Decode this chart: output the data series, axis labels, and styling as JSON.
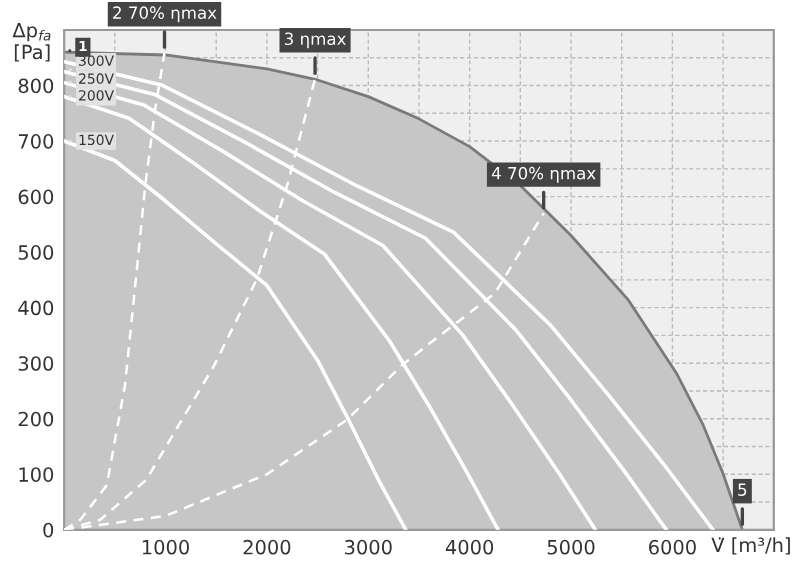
{
  "chart_data": {
    "type": "line",
    "xlabel": "V̇ [m³/h]",
    "ylabel": "Δp$_{fa}$\n[Pa]",
    "xlim": [
      0,
      7000
    ],
    "ylim": [
      0,
      900
    ],
    "xticks": [
      1000,
      2000,
      3000,
      4000,
      5000,
      6000
    ],
    "yticks": [
      0,
      100,
      200,
      300,
      400,
      500,
      600,
      700,
      800
    ],
    "grid": true,
    "series": [
      {
        "type": "area",
        "color": "#c6c6c6",
        "x": [
          0,
          1000,
          2000,
          2500,
          3000,
          3500,
          4000,
          4500,
          5000,
          5560,
          6040,
          6300,
          6500,
          6690
        ],
        "values": [
          860,
          855,
          830,
          810,
          780,
          740,
          690,
          620,
          530,
          415,
          282,
          190,
          101,
          0
        ]
      },
      {
        "name": "150V",
        "color": "#ffffff",
        "x": [
          0,
          500,
          1000,
          1500,
          2000,
          2500,
          2800,
          3100,
          3370
        ],
        "values": [
          700,
          665,
          592,
          515,
          440,
          305,
          200,
          90,
          0
        ]
      },
      {
        "name": "200V",
        "color": "#ffffff",
        "x": [
          0,
          640,
          1280,
          1930,
          2570,
          3210,
          3600,
          3980,
          4280
        ],
        "values": [
          780,
          741,
          660,
          574,
          496,
          340,
          223,
          101,
          0
        ]
      },
      {
        "name": "250V",
        "color": "#ffffff",
        "x": [
          0,
          786,
          1572,
          2358,
          3144,
          3930,
          4402,
          4873,
          5240
        ],
        "values": [
          805,
          765,
          681,
          592,
          512,
          351,
          230,
          104,
          0
        ]
      },
      {
        "name": "300V",
        "color": "#ffffff",
        "x": [
          0,
          891,
          1782,
          2673,
          3564,
          4455,
          4990,
          5524,
          5940
        ],
        "values": [
          825,
          784,
          698,
          607,
          525,
          360,
          236,
          106,
          0
        ]
      },
      {
        "color": "#ffffff",
        "x": [
          0,
          960,
          1920,
          2880,
          3840,
          4800,
          5376,
          5952,
          6400
        ],
        "values": [
          843,
          801,
          713,
          620,
          536,
          368,
          241,
          109,
          0
        ]
      },
      {
        "color": "#ffffff",
        "line_style": "dashed",
        "x": [
          0,
          160,
          420,
          600,
          690,
          800,
          900,
          990
        ],
        "values": [
          0,
          18,
          80,
          260,
          420,
          620,
          760,
          859
        ]
      },
      {
        "color": "#ffffff",
        "line_style": "dashed",
        "x": [
          0,
          356,
          810,
          1480,
          1900,
          2200,
          2475
        ],
        "values": [
          0,
          18,
          90,
          296,
          451,
          620,
          812
        ]
      },
      {
        "color": "#ffffff",
        "line_style": "dashed",
        "x": [
          0,
          1000,
          2000,
          2790,
          3330,
          3580,
          4250,
          4730
        ],
        "values": [
          0,
          25,
          100,
          198,
          296,
          332,
          426,
          570
        ]
      }
    ],
    "annotations": [
      {
        "text": "1",
        "x": 0,
        "y": 860
      },
      {
        "text": "2 70% ηmax",
        "x": 990,
        "y": 859
      },
      {
        "text": "3 ηmax",
        "x": 2475,
        "y": 812
      },
      {
        "text": "4 70% ηmax",
        "x": 4730,
        "y": 570
      },
      {
        "text": "5",
        "x": 6690,
        "y": 0
      }
    ]
  }
}
